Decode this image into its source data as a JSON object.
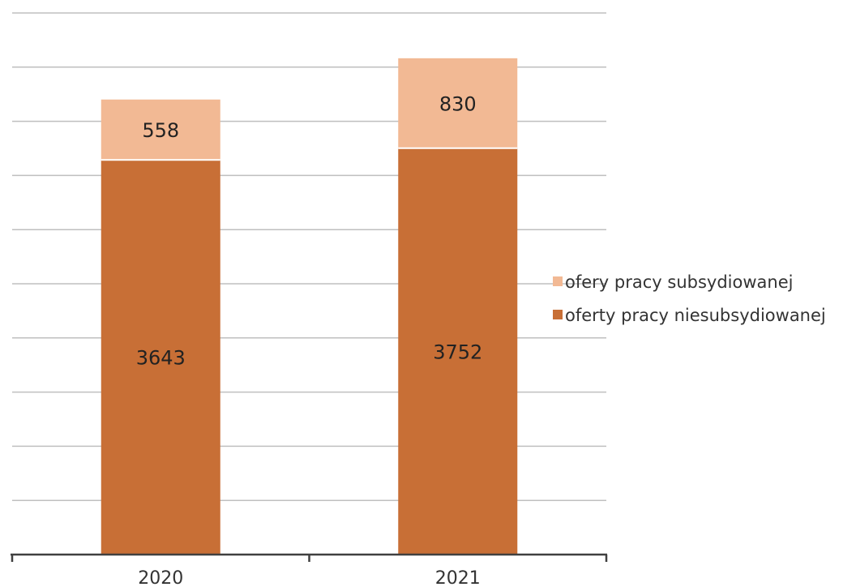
{
  "chart_data": {
    "type": "bar",
    "stacked": true,
    "categories": [
      "2020",
      "2021"
    ],
    "series": [
      {
        "name": "oferty pracy niesubsydiowanej",
        "values": [
          3643,
          3752
        ],
        "color": "#c86f36"
      },
      {
        "name": "ofery pracy subsydiowanej",
        "values": [
          558,
          830
        ],
        "color": "#f2b994"
      }
    ],
    "ylim": [
      0,
      5000
    ],
    "grid": true,
    "y_tick_labels_shown": false,
    "legend_position": "right",
    "legend_order": [
      1,
      0
    ],
    "title": "",
    "xlabel": "",
    "ylabel": ""
  }
}
